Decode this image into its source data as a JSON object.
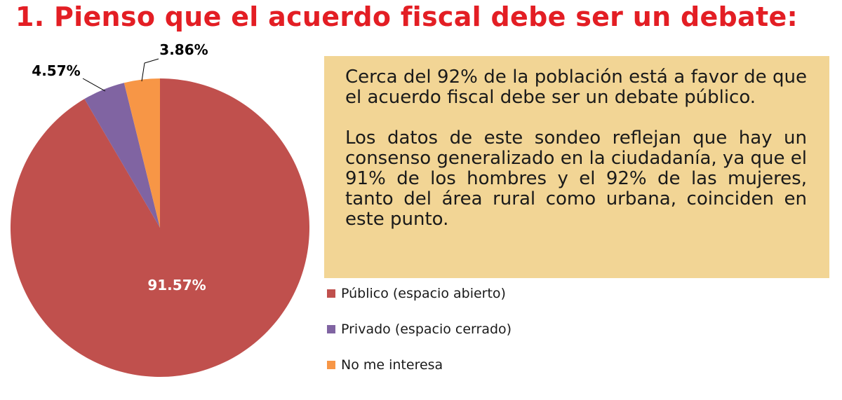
{
  "title": "1. Pienso que el acuerdo fiscal debe ser un debate:",
  "note": {
    "paragraph_1": "Cerca del 92% de la población está a favor de que el acuerdo fiscal debe ser un debate público.",
    "paragraph_2": "Los datos de este sondeo reflejan que hay un consenso generalizado en la ciudadanía, ya que el 91% de los hombres y el 92% de las mujeres, tanto del área rural como urbana, coinciden en este punto."
  },
  "chart_data": {
    "type": "pie",
    "title": "",
    "slices": [
      {
        "label": "Público (espacio abierto)",
        "value": 91.57,
        "display": "91.57%",
        "color": "#c0504d"
      },
      {
        "label": "Privado (espacio cerrado)",
        "value": 4.57,
        "display": "4.57%",
        "color": "#8064a2"
      },
      {
        "label": "No me interesa",
        "value": 3.86,
        "display": "3.86%",
        "color": "#f79646"
      }
    ],
    "legend_position": "right"
  }
}
